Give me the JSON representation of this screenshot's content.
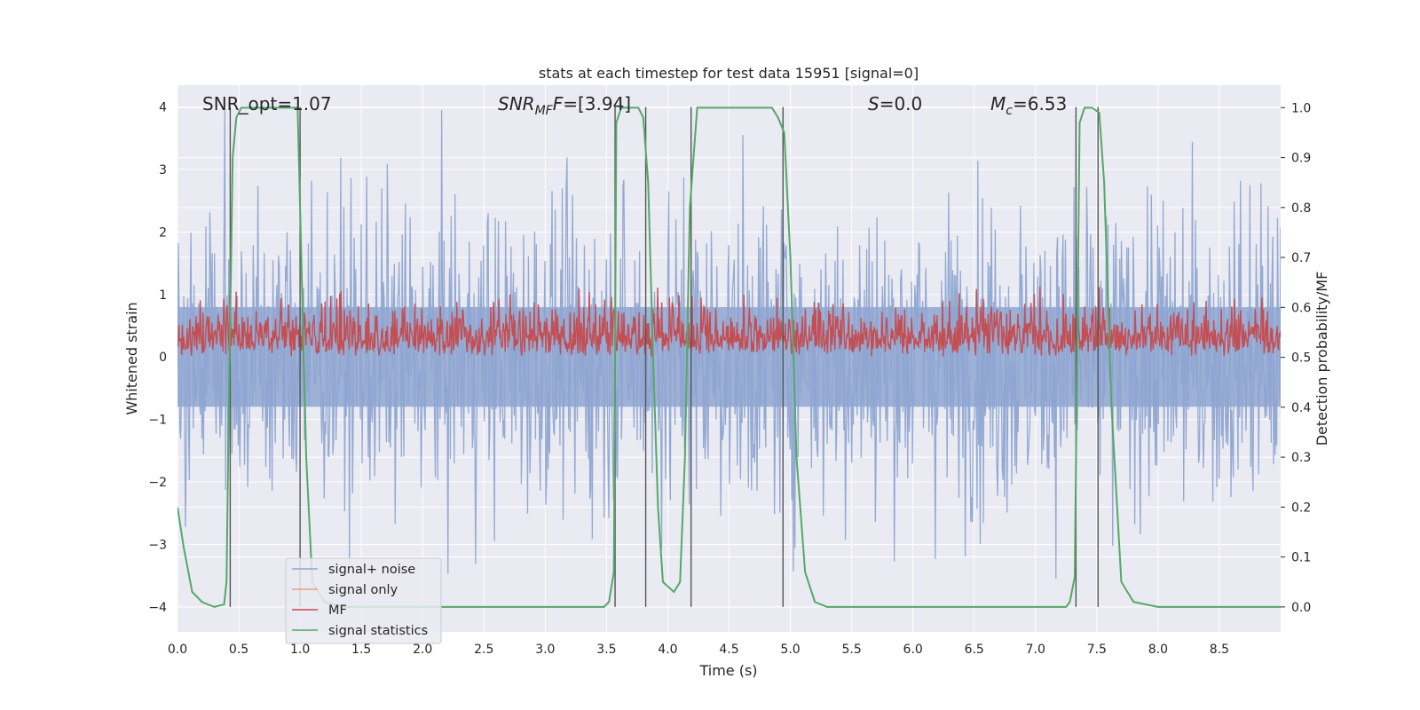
{
  "chart_data": {
    "type": "line",
    "title": "stats at each timestep for test data 15951 [signal=0]",
    "xlabel": "Time (s)",
    "ylabel": "Whitened strain",
    "y2label": "Detection probability/MF",
    "xlim": [
      0.0,
      9.0
    ],
    "ylim": [
      -4.4,
      4.35
    ],
    "y2lim": [
      -0.05,
      1.045
    ],
    "xticks": [
      "0.0",
      "0.5",
      "1.0",
      "1.5",
      "2.0",
      "2.5",
      "3.0",
      "3.5",
      "4.0",
      "4.5",
      "5.0",
      "5.5",
      "6.0",
      "6.5",
      "7.0",
      "7.5",
      "8.0",
      "8.5"
    ],
    "yticks": [
      "−4",
      "−3",
      "−2",
      "−1",
      "0",
      "1",
      "2",
      "3",
      "4"
    ],
    "y2ticks": [
      "0.0",
      "0.1",
      "0.2",
      "0.3",
      "0.4",
      "0.5",
      "0.6",
      "0.7",
      "0.8",
      "0.9",
      "1.0"
    ],
    "grid": true,
    "legend_position": "lower-left",
    "series": [
      {
        "name": "signal+ noise",
        "color": "#8fa6d1",
        "axis": "left",
        "description": "dense noise, amplitude roughly ±4 around 0"
      },
      {
        "name": "signal only",
        "color": "#e9a07e",
        "axis": "left",
        "values": []
      },
      {
        "name": "MF",
        "color": "#c44e52",
        "axis": "right",
        "description": "matched filter output fluctuating roughly 0.5–0.63"
      },
      {
        "name": "signal statistics",
        "color": "#55a868",
        "axis": "right",
        "x": [
          0.0,
          0.05,
          0.12,
          0.2,
          0.3,
          0.38,
          0.4,
          0.42,
          0.45,
          0.48,
          0.52,
          0.6,
          0.8,
          0.98,
          1.02,
          1.05,
          1.1,
          1.2,
          1.35,
          1.5,
          2.0,
          2.5,
          3.0,
          3.48,
          3.52,
          3.56,
          3.58,
          3.62,
          3.7,
          3.76,
          3.8,
          3.84,
          3.88,
          3.92,
          3.96,
          4.05,
          4.1,
          4.14,
          4.18,
          4.24,
          4.3,
          4.6,
          4.85,
          4.9,
          4.95,
          5.0,
          5.05,
          5.12,
          5.2,
          5.3,
          6.0,
          7.0,
          7.25,
          7.28,
          7.32,
          7.36,
          7.4,
          7.46,
          7.52,
          7.56,
          7.62,
          7.7,
          7.8,
          8.0,
          8.5,
          9.0
        ],
        "y": [
          0.2,
          0.12,
          0.03,
          0.01,
          0.0,
          0.005,
          0.05,
          0.42,
          0.9,
          0.98,
          1.0,
          1.0,
          1.0,
          1.0,
          0.6,
          0.3,
          0.05,
          0.01,
          0.0,
          0.0,
          0.0,
          0.0,
          0.0,
          0.0,
          0.01,
          0.07,
          0.97,
          1.0,
          1.0,
          1.0,
          0.98,
          0.85,
          0.5,
          0.2,
          0.05,
          0.03,
          0.05,
          0.3,
          0.8,
          1.0,
          1.0,
          1.0,
          1.0,
          0.98,
          0.95,
          0.7,
          0.3,
          0.07,
          0.01,
          0.0,
          0.0,
          0.0,
          0.0,
          0.01,
          0.06,
          0.97,
          1.0,
          1.0,
          0.99,
          0.85,
          0.4,
          0.05,
          0.01,
          0.0,
          0.0,
          0.0
        ]
      }
    ],
    "vlines": [
      0.43,
      1.0,
      3.57,
      3.82,
      4.19,
      4.94,
      7.33,
      7.51
    ],
    "annotations": [
      {
        "text": "SNR_opt=1.07",
        "kind": "plain"
      },
      {
        "text_main": "SNR",
        "text_sub": "MF",
        "text_rest": "=[3.94]",
        "kind": "sub"
      },
      {
        "text_main": "S",
        "text_rest": "=0.0",
        "kind": "italic"
      },
      {
        "text_main": "M",
        "text_sub": "c",
        "text_rest": "=6.53",
        "kind": "sub-italic-main"
      }
    ]
  },
  "colors": {
    "axes_bg": "#eaeaf2",
    "grid": "#ffffff",
    "text": "#262626",
    "vline": "#555555"
  }
}
